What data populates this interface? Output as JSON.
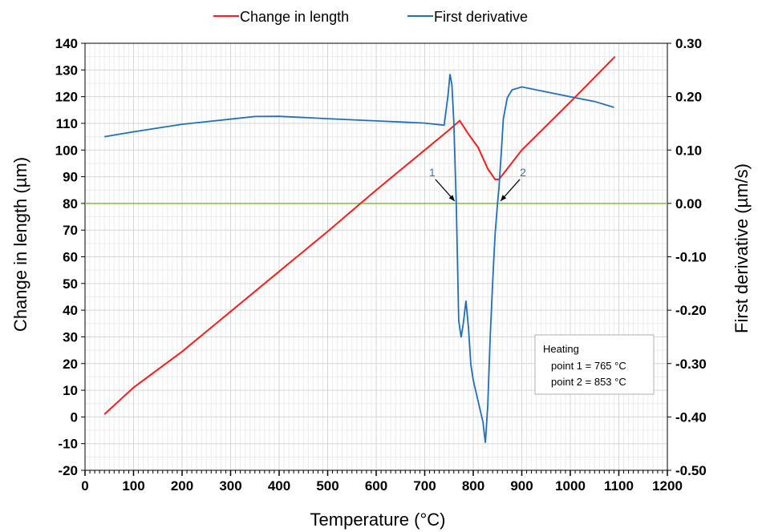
{
  "chart_data": {
    "type": "line",
    "xlabel": "Temperature (°C)",
    "ylabel_left": "Change in length (µm)",
    "ylabel_right": "First derivative (µm/s)",
    "xlim": [
      0,
      1200
    ],
    "ylim_left": [
      -20,
      140
    ],
    "ylim_right": [
      -0.5,
      0.3
    ],
    "x_ticks": [
      "0",
      "100",
      "200",
      "300",
      "400",
      "500",
      "600",
      "700",
      "800",
      "900",
      "1000",
      "1100",
      "1200"
    ],
    "y_left_ticks": [
      "-20",
      "-10",
      "0",
      "10",
      "20",
      "30",
      "40",
      "50",
      "60",
      "70",
      "80",
      "90",
      "100",
      "110",
      "120",
      "130",
      "140"
    ],
    "y_right_ticks": [
      "-0.50",
      "-0.40",
      "-0.30",
      "-0.20",
      "-0.10",
      "0.00",
      "0.10",
      "0.20",
      "0.30"
    ],
    "grid": true,
    "legend_position": "top",
    "series": [
      {
        "name": "Change in length",
        "axis": "left",
        "color": "#ff1a1a",
        "x": [
          40,
          100,
          200,
          300,
          400,
          500,
          600,
          700,
          750,
          772,
          790,
          810,
          830,
          845,
          853,
          870,
          900,
          1000,
          1092
        ],
        "y": [
          1,
          11,
          24.5,
          39.5,
          54.5,
          69.5,
          85,
          100,
          107.5,
          111,
          106,
          101,
          93,
          89,
          89,
          93,
          100,
          118,
          135
        ]
      },
      {
        "name": "First derivative",
        "axis": "right",
        "color": "#1f6fbf",
        "x": [
          40,
          100,
          200,
          300,
          350,
          400,
          500,
          600,
          700,
          740,
          748,
          752,
          756,
          760,
          765,
          770,
          775,
          780,
          785,
          790,
          795,
          800,
          810,
          820,
          825,
          830,
          835,
          840,
          845,
          850,
          853,
          858,
          862,
          870,
          880,
          900,
          950,
          1000,
          1050,
          1090
        ],
        "y": [
          0.125,
          0.135,
          0.15,
          0.16,
          0.165,
          0.165,
          0.16,
          0.155,
          0.15,
          0.145,
          0.2,
          0.24,
          0.22,
          0.15,
          0.0,
          -0.22,
          -0.25,
          -0.22,
          -0.18,
          -0.23,
          -0.3,
          -0.33,
          -0.37,
          -0.41,
          -0.45,
          -0.38,
          -0.25,
          -0.15,
          -0.06,
          0.0,
          0.03,
          0.1,
          0.16,
          0.2,
          0.215,
          0.22,
          0.21,
          0.2,
          0.19,
          0.18
        ]
      }
    ],
    "reference_line": {
      "axis": "right",
      "y": 0.0,
      "color": "#7dc242"
    },
    "annotations": [
      {
        "label": "1",
        "x": 765,
        "y_right": 0.0
      },
      {
        "label": "2",
        "x": 853,
        "y_right": 0.0
      }
    ],
    "info_box": {
      "title": "Heating",
      "lines": [
        "point 1 = 765 °C",
        "point 2 = 853 °C"
      ]
    }
  }
}
